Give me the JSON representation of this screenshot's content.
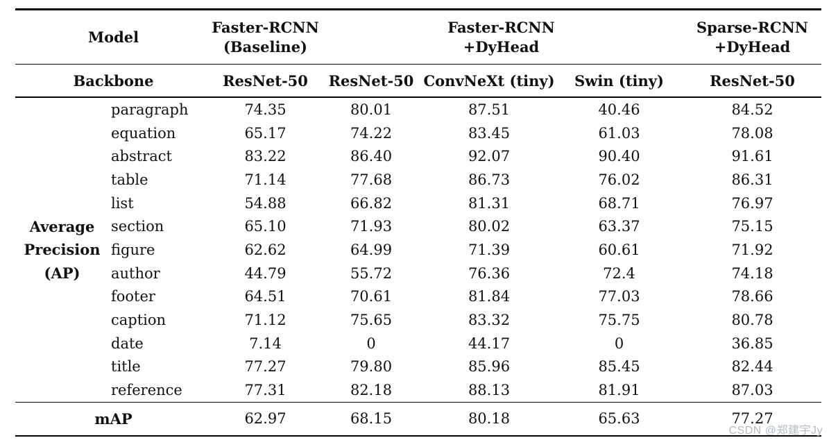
{
  "page": {
    "background": "#ffffff",
    "text_color": "#111111",
    "rule_color": "#000000"
  },
  "watermark": {
    "text": "CSDN @郑建宇Jy",
    "color": "#b6bcc7"
  },
  "table": {
    "header": {
      "model_label": "Model",
      "backbone_label": "Backbone",
      "model_groups": [
        {
          "label": "Faster-RCNN\n(Baseline)",
          "span": 1
        },
        {
          "label": "Faster-RCNN\n+DyHead",
          "span": 3
        },
        {
          "label": "Sparse-RCNN\n+DyHead",
          "span": 1
        }
      ],
      "backbones": [
        "ResNet-50",
        "ResNet-50",
        "ConvNeXt (tiny)",
        "Swin (tiny)",
        "ResNet-50"
      ]
    },
    "row_group_label": "Average\nPrecision\n(AP)",
    "rows": [
      {
        "category": "paragraph",
        "values": [
          "74.35",
          "80.01",
          "87.51",
          "40.46",
          "84.52"
        ]
      },
      {
        "category": "equation",
        "values": [
          "65.17",
          "74.22",
          "83.45",
          "61.03",
          "78.08"
        ]
      },
      {
        "category": "abstract",
        "values": [
          "83.22",
          "86.40",
          "92.07",
          "90.40",
          "91.61"
        ]
      },
      {
        "category": "table",
        "values": [
          "71.14",
          "77.68",
          "86.73",
          "76.02",
          "86.31"
        ]
      },
      {
        "category": "list",
        "values": [
          "54.88",
          "66.82",
          "81.31",
          "68.71",
          "76.97"
        ]
      },
      {
        "category": "section",
        "values": [
          "65.10",
          "71.93",
          "80.02",
          "63.37",
          "75.15"
        ]
      },
      {
        "category": "figure",
        "values": [
          "62.62",
          "64.99",
          "71.39",
          "60.61",
          "71.92"
        ]
      },
      {
        "category": "author",
        "values": [
          "44.79",
          "55.72",
          "76.36",
          "72.4",
          "74.18"
        ]
      },
      {
        "category": "footer",
        "values": [
          "64.51",
          "70.61",
          "81.84",
          "77.03",
          "78.66"
        ]
      },
      {
        "category": "caption",
        "values": [
          "71.12",
          "75.65",
          "83.32",
          "75.75",
          "80.78"
        ]
      },
      {
        "category": "date",
        "values": [
          "7.14",
          "0",
          "44.17",
          "0",
          "36.85"
        ]
      },
      {
        "category": "title",
        "values": [
          "77.27",
          "79.80",
          "85.96",
          "85.45",
          "82.44"
        ]
      },
      {
        "category": "reference",
        "values": [
          "77.31",
          "82.18",
          "88.13",
          "81.91",
          "87.03"
        ]
      }
    ],
    "footer": {
      "label": "mAP",
      "values": [
        "62.97",
        "68.15",
        "80.18",
        "65.63",
        "77.27"
      ]
    }
  },
  "chart_data": {
    "type": "table",
    "title": "Average Precision (AP) per layout category by model and backbone",
    "categories": [
      "paragraph",
      "equation",
      "abstract",
      "table",
      "list",
      "section",
      "figure",
      "author",
      "footer",
      "caption",
      "date",
      "title",
      "reference"
    ],
    "series": [
      {
        "name": "Faster-RCNN (Baseline) / ResNet-50",
        "values": [
          74.35,
          65.17,
          83.22,
          71.14,
          54.88,
          65.1,
          62.62,
          44.79,
          64.51,
          71.12,
          7.14,
          77.27,
          77.31
        ],
        "mAP": 62.97
      },
      {
        "name": "Faster-RCNN +DyHead / ResNet-50",
        "values": [
          80.01,
          74.22,
          86.4,
          77.68,
          66.82,
          71.93,
          64.99,
          55.72,
          70.61,
          75.65,
          0,
          79.8,
          82.18
        ],
        "mAP": 68.15
      },
      {
        "name": "Faster-RCNN +DyHead / ConvNeXt (tiny)",
        "values": [
          87.51,
          83.45,
          92.07,
          86.73,
          81.31,
          80.02,
          71.39,
          76.36,
          81.84,
          83.32,
          44.17,
          85.96,
          88.13
        ],
        "mAP": 80.18
      },
      {
        "name": "Faster-RCNN +DyHead / Swin (tiny)",
        "values": [
          40.46,
          61.03,
          90.4,
          76.02,
          68.71,
          63.37,
          60.61,
          72.4,
          77.03,
          75.75,
          0,
          85.45,
          81.91
        ],
        "mAP": 65.63
      },
      {
        "name": "Sparse-RCNN +DyHead / ResNet-50",
        "values": [
          84.52,
          78.08,
          91.61,
          86.31,
          76.97,
          75.15,
          71.92,
          74.18,
          78.66,
          80.78,
          36.85,
          82.44,
          87.03
        ],
        "mAP": 77.27
      }
    ]
  }
}
